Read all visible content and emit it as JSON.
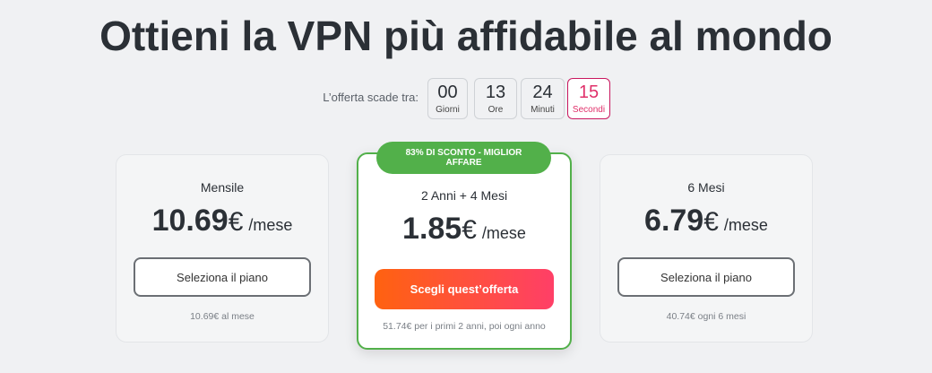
{
  "title": "Ottieni la VPN più affidabile al mondo",
  "countdown": {
    "label": "L’offerta scade tra:",
    "units": [
      {
        "value": "00",
        "label": "Giorni"
      },
      {
        "value": "13",
        "label": "Ore"
      },
      {
        "value": "24",
        "label": "Minuti"
      },
      {
        "value": "15",
        "label": "Secondi"
      }
    ]
  },
  "plans": [
    {
      "name": "Mensile",
      "price": "10.69",
      "currency": "€",
      "period": "/mese",
      "button": "Seleziona il piano",
      "note": "10.69€ al mese"
    },
    {
      "badge": "83% DI SCONTO - MIGLIOR AFFARE",
      "name": "2 Anni + 4 Mesi",
      "price": "1.85",
      "currency": "€",
      "period": "/mese",
      "button": "Scegli quest’offerta",
      "note": "51.74€ per i primi 2 anni, poi ogni anno"
    },
    {
      "name": "6 Mesi",
      "price": "6.79",
      "currency": "€",
      "period": "/mese",
      "button": "Seleziona il piano",
      "note": "40.74€ ogni 6 mesi"
    }
  ],
  "colors": {
    "accent_green": "#52b04a",
    "cta_start": "#ff6210",
    "cta_end": "#ff3f67",
    "seconds": "#e0306a"
  }
}
